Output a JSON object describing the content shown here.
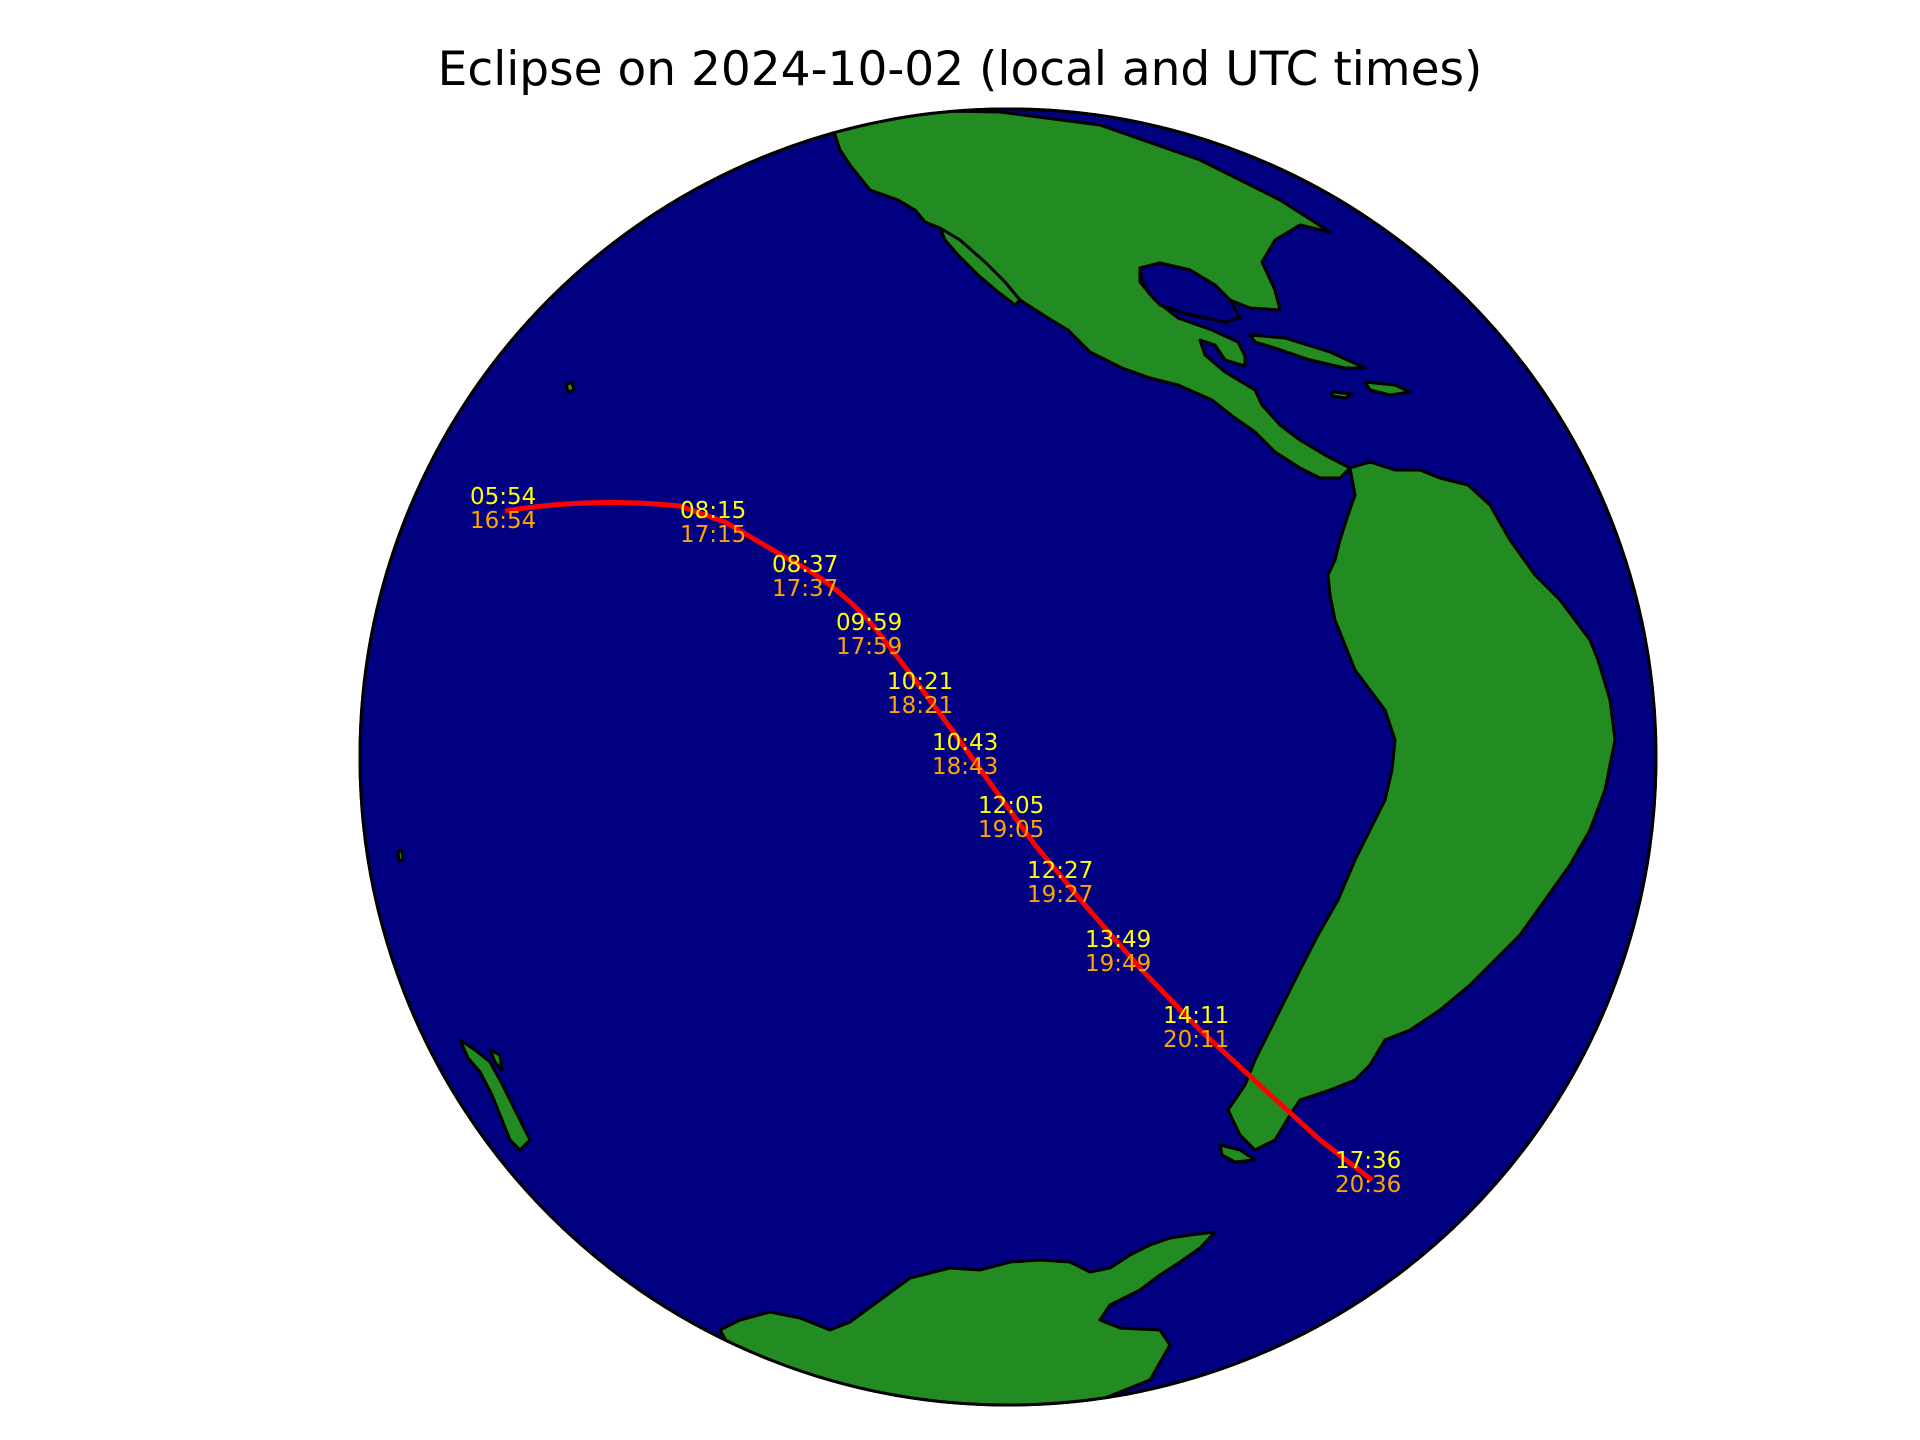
{
  "title": "Eclipse on 2024-10-02 (local and UTC times)",
  "colors": {
    "ocean": "#000080",
    "land": "#228b22",
    "coast": "#000000",
    "path": "#ff0000",
    "local_time": "#ffff00",
    "utc_time": "#ffa500"
  },
  "eclipse_path_labels": [
    {
      "local": "05:54",
      "utc": "16:54"
    },
    {
      "local": "08:15",
      "utc": "17:15"
    },
    {
      "local": "08:37",
      "utc": "17:37"
    },
    {
      "local": "09:59",
      "utc": "17:59"
    },
    {
      "local": "10:21",
      "utc": "18:21"
    },
    {
      "local": "10:43",
      "utc": "18:43"
    },
    {
      "local": "12:05",
      "utc": "19:05"
    },
    {
      "local": "12:27",
      "utc": "19:27"
    },
    {
      "local": "13:49",
      "utc": "19:49"
    },
    {
      "local": "14:11",
      "utc": "20:11"
    },
    {
      "local": "17:36",
      "utc": "20:36"
    }
  ]
}
